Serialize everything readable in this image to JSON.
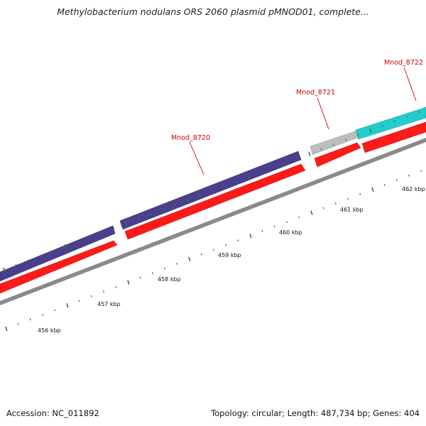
{
  "title": "Methylobacterium nodulans ORS 2060 plasmid pMNOD01, complete...",
  "footer": {
    "accession": "Accession: NC_011892",
    "summary": "Topology: circular; Length: 487,734 bp; Genes: 404"
  },
  "colors": {
    "gene_blue": "#4a3f8c",
    "gene_red": "#ff0000",
    "gene_gray": "#bdbdbd",
    "gene_cyan": "#22cccc",
    "backbone": "#8c8c8c",
    "tick_green": "#2d7a2d",
    "label_red": "#cc0000"
  },
  "axis_labels": [
    "456 kbp",
    "457 kbp",
    "458 kbp",
    "459 kbp",
    "460 kbp",
    "461 kbp",
    "462 kbp"
  ],
  "genes": [
    {
      "label": "Mnod_8720"
    },
    {
      "label": "Mnod_8721"
    },
    {
      "label": "Mnod_8722"
    }
  ]
}
